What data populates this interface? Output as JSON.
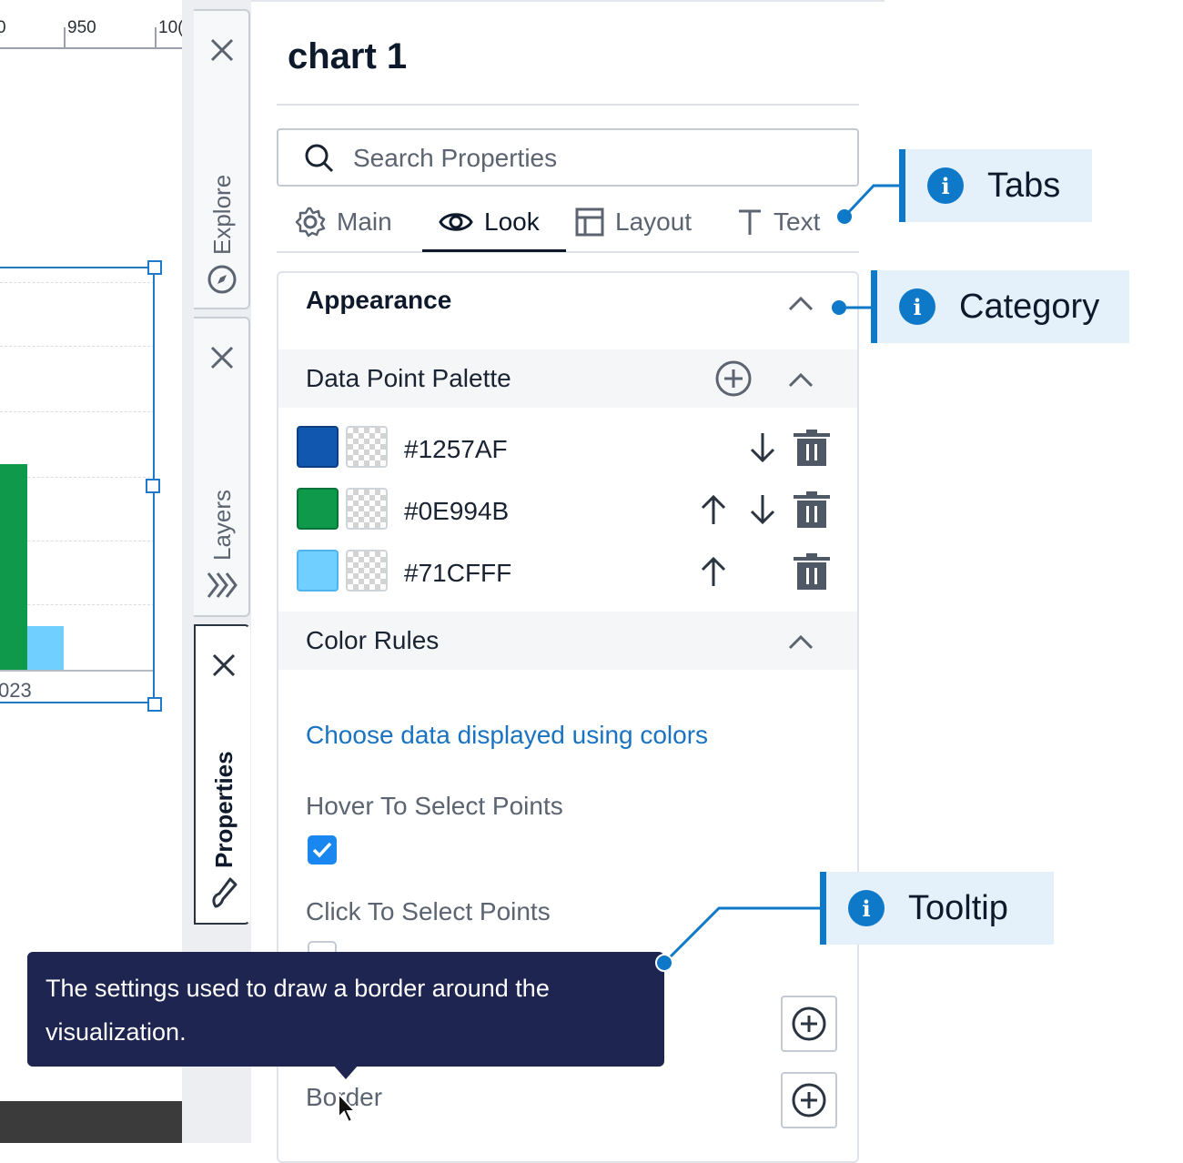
{
  "ruler": {
    "labels": [
      "0",
      "950",
      "10("
    ]
  },
  "chart_preview": {
    "axis_label": "023",
    "colors": {
      "green": "#0E994B",
      "light_blue": "#71CFFF",
      "selection": "#1f78c8"
    }
  },
  "side_tabs": [
    {
      "label": "Explore",
      "icon": "compass-icon",
      "close_icon": "close-icon"
    },
    {
      "label": "Layers",
      "icon": "layers-icon",
      "close_icon": "close-icon"
    },
    {
      "label": "Properties",
      "icon": "brush-icon",
      "close_icon": "close-icon",
      "active": true
    }
  ],
  "panel": {
    "title": "chart 1",
    "search": {
      "placeholder": "Search Properties",
      "value": ""
    },
    "tabs": [
      {
        "label": "Main",
        "icon": "gear-icon"
      },
      {
        "label": "Look",
        "icon": "eye-icon",
        "active": true
      },
      {
        "label": "Layout",
        "icon": "layout-icon"
      },
      {
        "label": "Text",
        "icon": "text-icon"
      }
    ],
    "category": {
      "title": "Appearance"
    },
    "data_point_palette": {
      "title": "Data Point Palette",
      "colors": [
        {
          "hex": "#1257AF",
          "swatch": "#1257AF"
        },
        {
          "hex": "#0E994B",
          "swatch": "#0E994B"
        },
        {
          "hex": "#71CFFF",
          "swatch": "#71CFFF"
        }
      ]
    },
    "color_rules": {
      "title": "Color Rules",
      "link": "Choose data displayed using colors"
    },
    "hover_select": {
      "label": "Hover To Select Points",
      "checked": true
    },
    "click_select": {
      "label": "Click To Select Points",
      "checked": false
    },
    "border": {
      "label": "Border"
    }
  },
  "tooltip": {
    "text": "The settings used to draw a border around the visualization."
  },
  "callouts": {
    "tabs": "Tabs",
    "category": "Category",
    "tooltip": "Tooltip",
    "accent": "#0f79c9"
  }
}
